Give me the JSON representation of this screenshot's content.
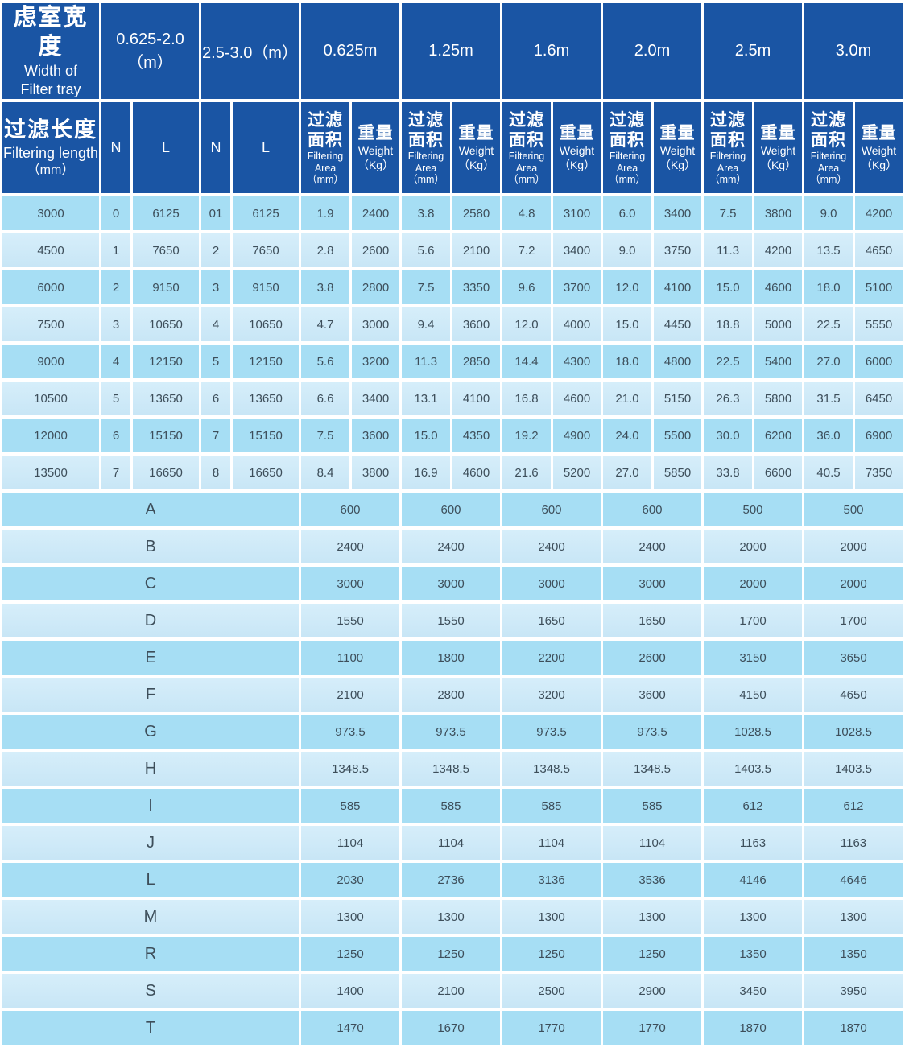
{
  "table": {
    "header": {
      "width_title_zh": "虑室宽度",
      "width_title_en1": "Width of",
      "width_title_en2": "Filter tray",
      "range_groups": [
        "0.625-2.0（m）",
        "2.5-3.0（m）"
      ],
      "width_columns": [
        "0.625m",
        "1.25m",
        "1.6m",
        "2.0m",
        "2.5m",
        "3.0m"
      ],
      "length_title_zh": "过滤长度",
      "length_title_en": "Filtering length",
      "length_unit": "（mm）",
      "n_label": "N",
      "l_label": "L",
      "area_zh1": "过滤",
      "area_zh2": "面积",
      "area_en1": "Filtering",
      "area_en2": "Area",
      "area_unit": "（mm）",
      "weight_zh": "重量",
      "weight_en": "Weight",
      "weight_unit": "（Kg）"
    },
    "spec_rows": [
      [
        "3000",
        "0",
        "6125",
        "01",
        "6125",
        "1.9",
        "2400",
        "3.8",
        "2580",
        "4.8",
        "3100",
        "6.0",
        "3400",
        "7.5",
        "3800",
        "9.0",
        "4200"
      ],
      [
        "4500",
        "1",
        "7650",
        "2",
        "7650",
        "2.8",
        "2600",
        "5.6",
        "2100",
        "7.2",
        "3400",
        "9.0",
        "3750",
        "11.3",
        "4200",
        "13.5",
        "4650"
      ],
      [
        "6000",
        "2",
        "9150",
        "3",
        "9150",
        "3.8",
        "2800",
        "7.5",
        "3350",
        "9.6",
        "3700",
        "12.0",
        "4100",
        "15.0",
        "4600",
        "18.0",
        "5100"
      ],
      [
        "7500",
        "3",
        "10650",
        "4",
        "10650",
        "4.7",
        "3000",
        "9.4",
        "3600",
        "12.0",
        "4000",
        "15.0",
        "4450",
        "18.8",
        "5000",
        "22.5",
        "5550"
      ],
      [
        "9000",
        "4",
        "12150",
        "5",
        "12150",
        "5.6",
        "3200",
        "11.3",
        "2850",
        "14.4",
        "4300",
        "18.0",
        "4800",
        "22.5",
        "5400",
        "27.0",
        "6000"
      ],
      [
        "10500",
        "5",
        "13650",
        "6",
        "13650",
        "6.6",
        "3400",
        "13.1",
        "4100",
        "16.8",
        "4600",
        "21.0",
        "5150",
        "26.3",
        "5800",
        "31.5",
        "6450"
      ],
      [
        "12000",
        "6",
        "15150",
        "7",
        "15150",
        "7.5",
        "3600",
        "15.0",
        "4350",
        "19.2",
        "4900",
        "24.0",
        "5500",
        "30.0",
        "6200",
        "36.0",
        "6900"
      ],
      [
        "13500",
        "7",
        "16650",
        "8",
        "16650",
        "8.4",
        "3800",
        "16.9",
        "4600",
        "21.6",
        "5200",
        "27.0",
        "5850",
        "33.8",
        "6600",
        "40.5",
        "7350"
      ]
    ],
    "dim_rows": [
      [
        "A",
        "600",
        "600",
        "600",
        "600",
        "500",
        "500"
      ],
      [
        "B",
        "2400",
        "2400",
        "2400",
        "2400",
        "2000",
        "2000"
      ],
      [
        "C",
        "3000",
        "3000",
        "3000",
        "3000",
        "2000",
        "2000"
      ],
      [
        "D",
        "1550",
        "1550",
        "1650",
        "1650",
        "1700",
        "1700"
      ],
      [
        "E",
        "1100",
        "1800",
        "2200",
        "2600",
        "3150",
        "3650"
      ],
      [
        "F",
        "2100",
        "2800",
        "3200",
        "3600",
        "4150",
        "4650"
      ],
      [
        "G",
        "973.5",
        "973.5",
        "973.5",
        "973.5",
        "1028.5",
        "1028.5"
      ],
      [
        "H",
        "1348.5",
        "1348.5",
        "1348.5",
        "1348.5",
        "1403.5",
        "1403.5"
      ],
      [
        "I",
        "585",
        "585",
        "585",
        "585",
        "612",
        "612"
      ],
      [
        "J",
        "1104",
        "1104",
        "1104",
        "1104",
        "1163",
        "1163"
      ],
      [
        "L",
        "2030",
        "2736",
        "3136",
        "3536",
        "4146",
        "4646"
      ],
      [
        "M",
        "1300",
        "1300",
        "1300",
        "1300",
        "1300",
        "1300"
      ],
      [
        "R",
        "1250",
        "1250",
        "1250",
        "1250",
        "1350",
        "1350"
      ],
      [
        "S",
        "1400",
        "2100",
        "2500",
        "2900",
        "3450",
        "3950"
      ],
      [
        "T",
        "1470",
        "1670",
        "1770",
        "1770",
        "1870",
        "1870"
      ]
    ]
  },
  "colors": {
    "header_blue": "#1a55a4",
    "row_dark_blue": "#a6def4",
    "row_light_blue": "#cfe9f8",
    "text_dark": "#3d4e5a",
    "grid_white": "#ffffff"
  }
}
